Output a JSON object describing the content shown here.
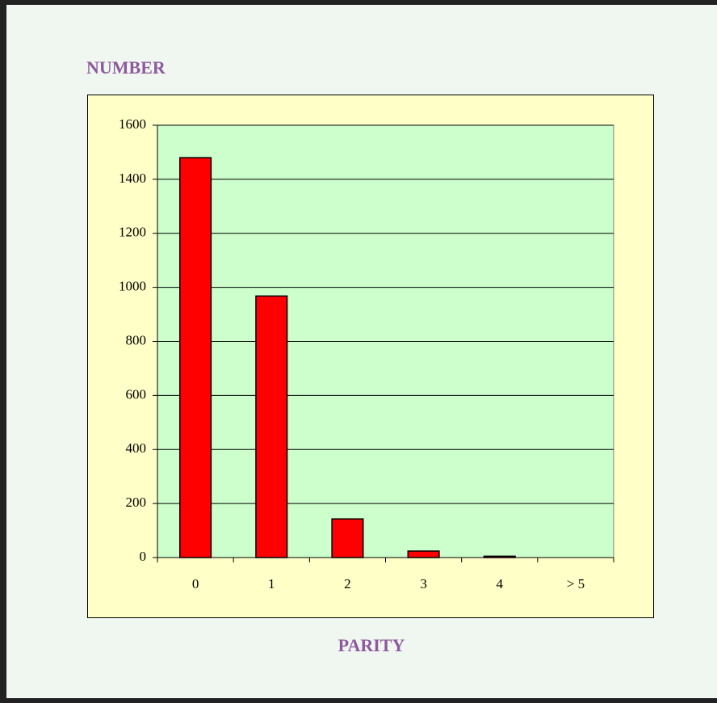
{
  "chart_data": {
    "type": "bar",
    "y_label": "NUMBER",
    "x_label": "PARITY",
    "categories": [
      "0",
      "1",
      "2",
      "3",
      "4",
      "> 5"
    ],
    "values": [
      1480,
      968,
      143,
      24,
      5,
      0
    ],
    "color": "#ff0000",
    "ylim": [
      0,
      1600
    ],
    "yticks": [
      0,
      200,
      400,
      600,
      800,
      1000,
      1200,
      1400,
      1600
    ],
    "grid": true
  }
}
